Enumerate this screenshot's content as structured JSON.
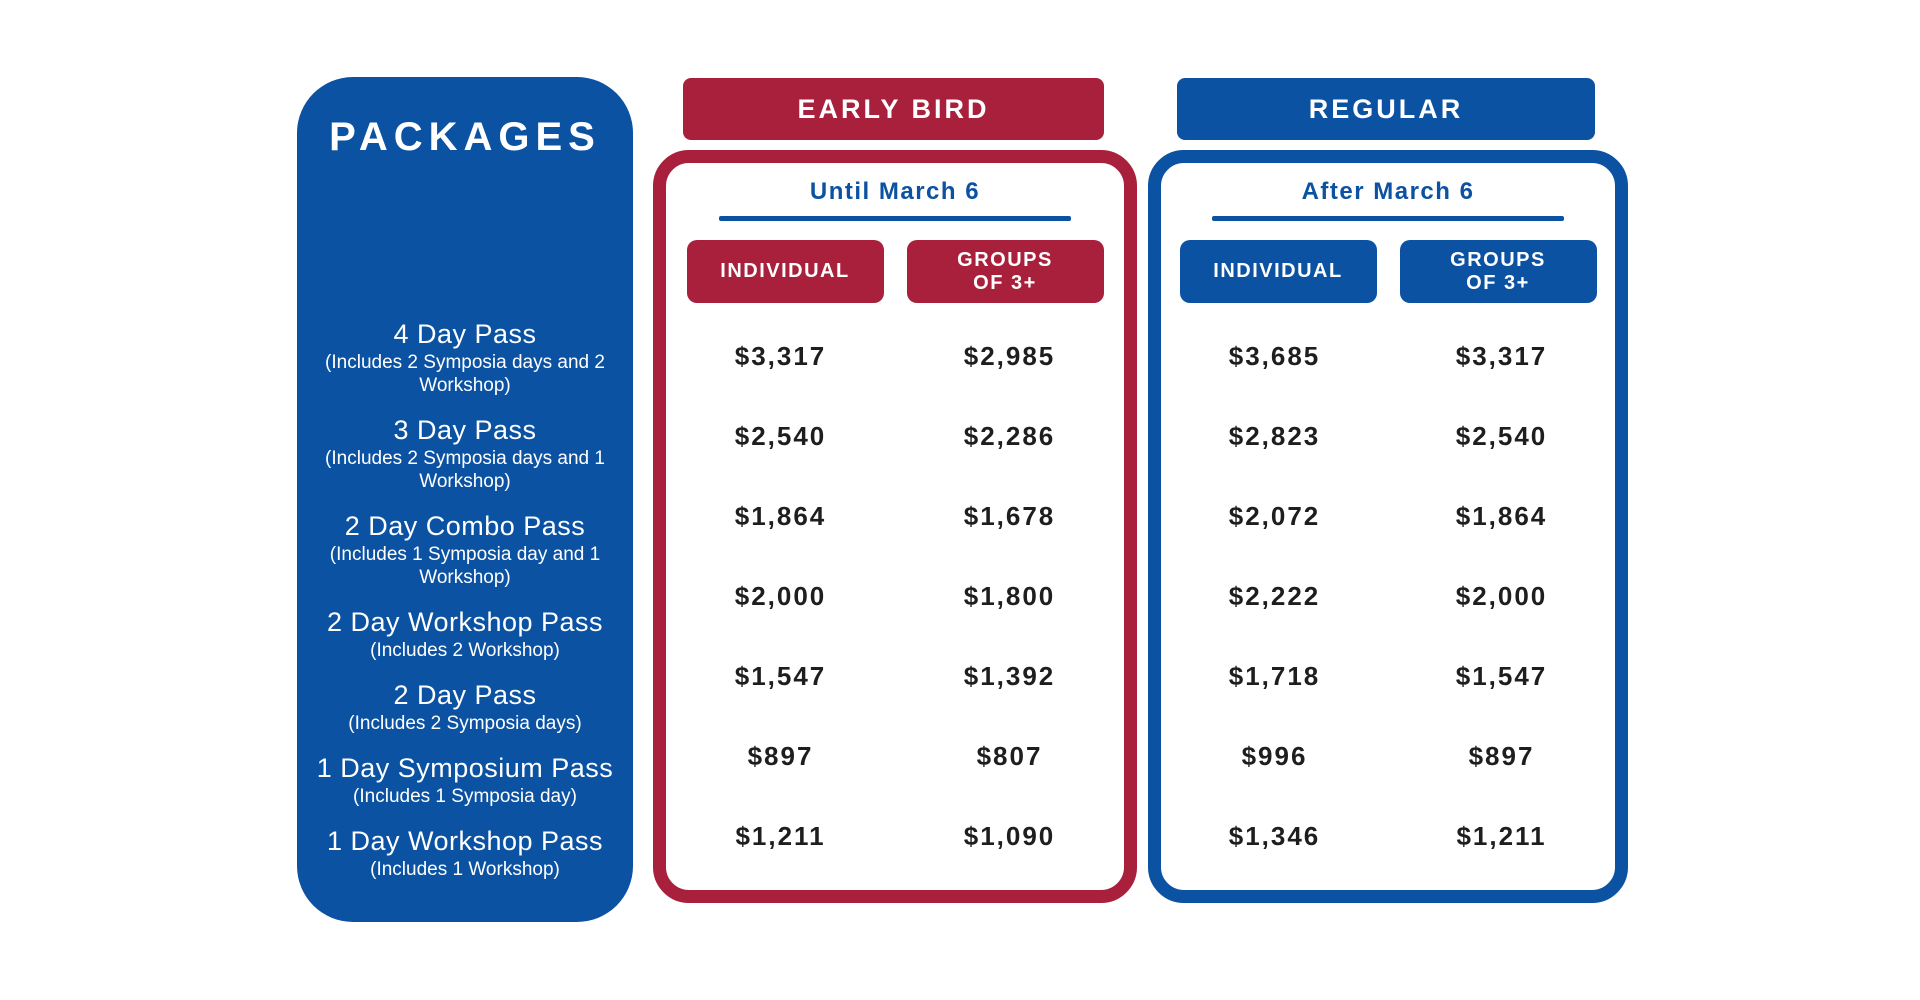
{
  "colors": {
    "blue": "#0B52A2",
    "red": "#A8203B",
    "ink": "#1E1E1E",
    "white": "#FFFFFF"
  },
  "packages_panel": {
    "title": "PACKAGES",
    "items": [
      {
        "name": "4 Day Pass",
        "note": "(Includes 2 Symposia days and 2 Workshop)"
      },
      {
        "name": "3 Day Pass",
        "note": "(Includes 2 Symposia days and 1 Workshop)"
      },
      {
        "name": "2 Day Combo Pass",
        "note": "(Includes 1 Symposia day and 1 Workshop)"
      },
      {
        "name": "2 Day Workshop Pass",
        "note": "(Includes 2 Workshop)"
      },
      {
        "name": "2 Day Pass",
        "note": "(Includes 2 Symposia days)"
      },
      {
        "name": "1 Day Symposium Pass",
        "note": "(Includes 1 Symposia day)"
      },
      {
        "name": "1 Day Workshop Pass",
        "note": "(Includes 1 Workshop)"
      }
    ]
  },
  "early_bird": {
    "header": "EARLY BIRD",
    "period": "Until March 6",
    "col_individual": "INDIVIDUAL",
    "col_groups": "GROUPS\nOF 3+",
    "individual": [
      "$3,317",
      "$2,540",
      "$1,864",
      "$2,000",
      "$1,547",
      "$897",
      "$1,211"
    ],
    "groups": [
      "$2,985",
      "$2,286",
      "$1,678",
      "$1,800",
      "$1,392",
      "$807",
      "$1,090"
    ]
  },
  "regular": {
    "header": "REGULAR",
    "period": "After March 6",
    "col_individual": "INDIVIDUAL",
    "col_groups": "GROUPS\nOF 3+",
    "individual": [
      "$3,685",
      "$2,823",
      "$2,072",
      "$2,222",
      "$1,718",
      "$996",
      "$1,346"
    ],
    "groups": [
      "$3,317",
      "$2,540",
      "$1,864",
      "$2,000",
      "$1,547",
      "$897",
      "$1,211"
    ]
  }
}
